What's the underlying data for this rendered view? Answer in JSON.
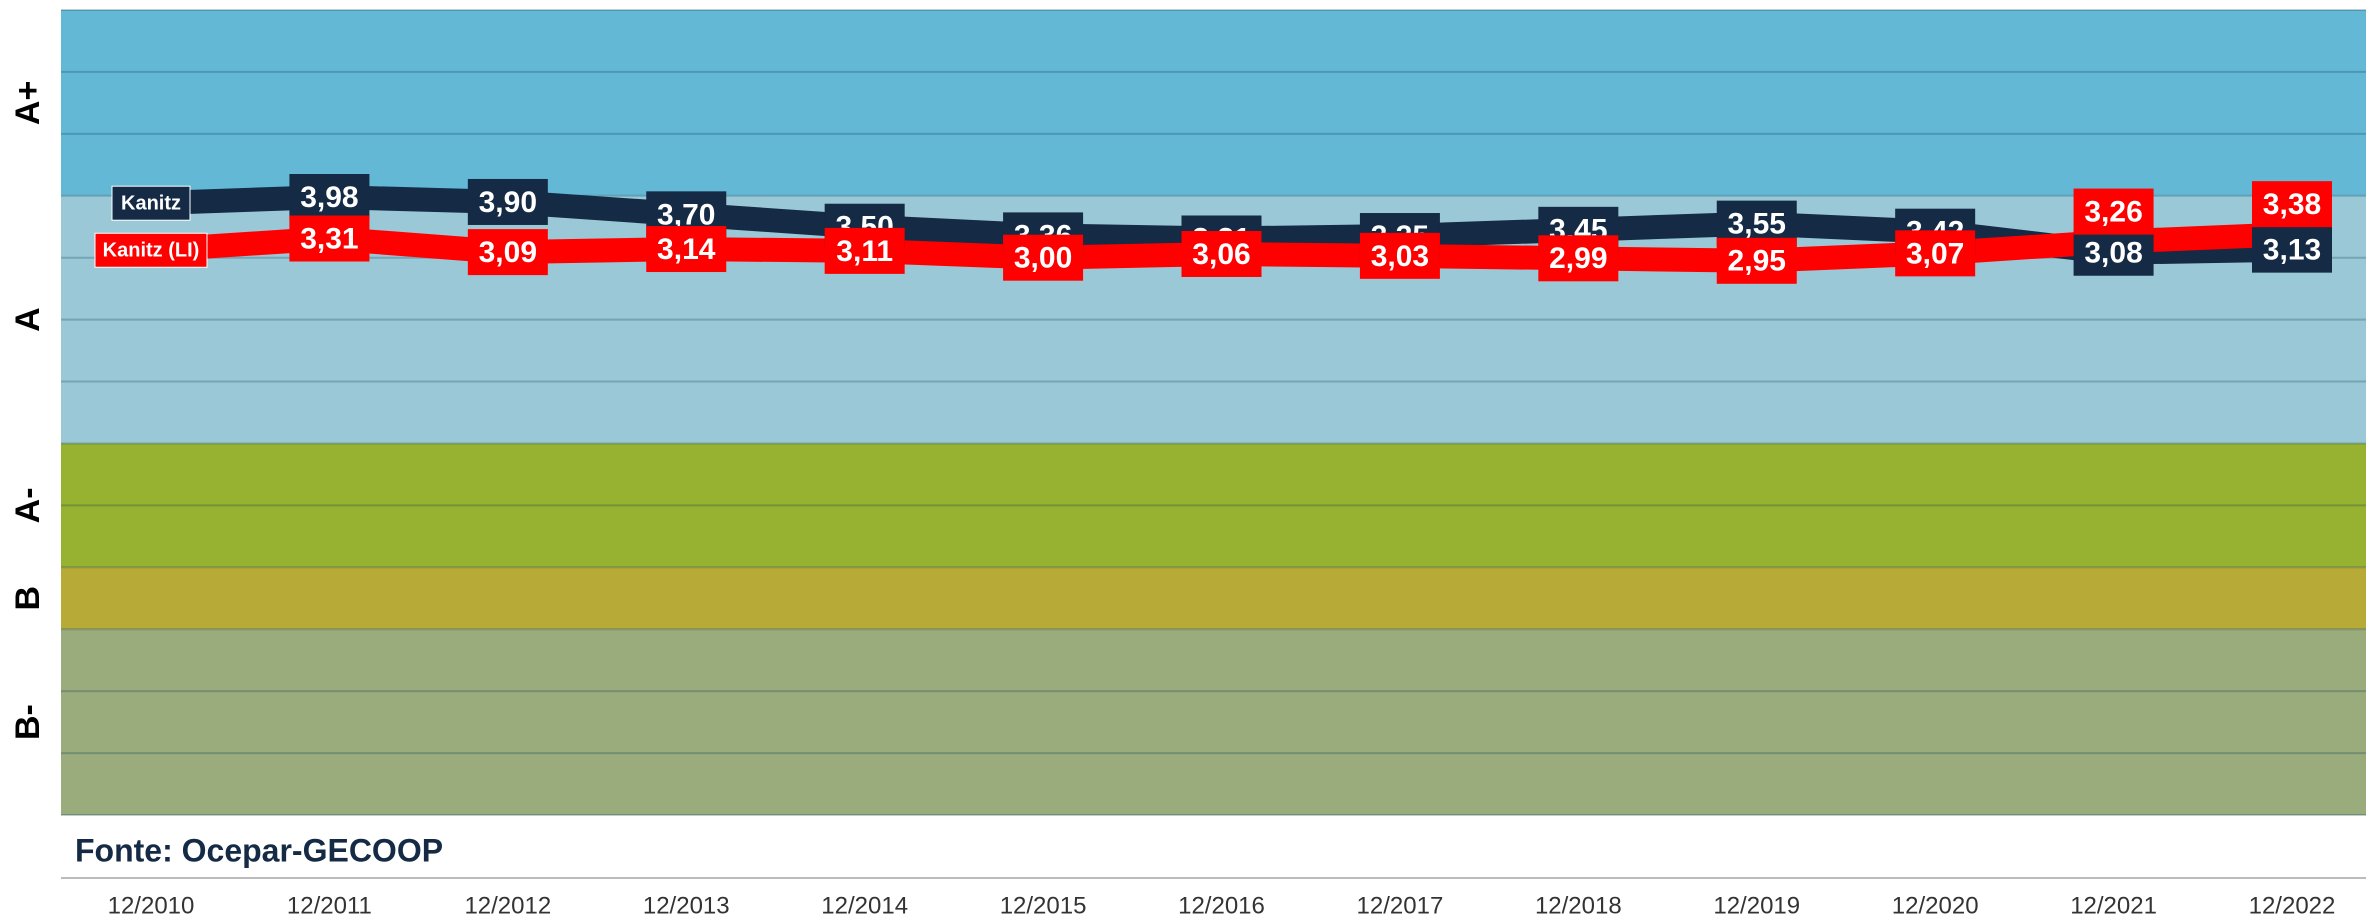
{
  "chart_data": {
    "type": "line",
    "source": "Fonte: Ocepar-GECOOP",
    "categories": [
      "12/2010",
      "12/2011",
      "12/2012",
      "12/2013",
      "12/2014",
      "12/2015",
      "12/2016",
      "12/2017",
      "12/2018",
      "12/2019",
      "12/2020",
      "12/2021",
      "12/2022"
    ],
    "series": [
      {
        "name": "Kanitz",
        "color": "#142a45",
        "values": [
          3.88,
          3.98,
          3.9,
          3.7,
          3.5,
          3.36,
          3.31,
          3.35,
          3.45,
          3.55,
          3.42,
          3.08,
          3.13
        ],
        "value_labels": [
          null,
          "3,98",
          "3,90",
          "3,70",
          "3,50",
          "3,36",
          "3,31",
          "3,35",
          "3,45",
          "3,55",
          "3,42",
          "3,08",
          "3,13"
        ]
      },
      {
        "name": "Kanitz (LI)",
        "color": "#ff0000",
        "values": [
          3.12,
          3.31,
          3.09,
          3.14,
          3.11,
          3.0,
          3.06,
          3.03,
          2.99,
          2.95,
          3.07,
          3.26,
          3.38
        ],
        "value_labels": [
          null,
          "3,31",
          "3,09",
          "3,14",
          "3,11",
          "3,00",
          "3,06",
          "3,03",
          "2,99",
          "2,95",
          "3,07",
          "3,26",
          "3,38"
        ]
      }
    ],
    "bands": [
      {
        "label": "A+",
        "from": 4,
        "to": 7,
        "color": "#63b8d6"
      },
      {
        "label": "A",
        "from": 0,
        "to": 4,
        "color": "#9bc8d6"
      },
      {
        "label": "A-",
        "from": -2,
        "to": 0,
        "color": "#97b231"
      },
      {
        "label": "B",
        "from": -3,
        "to": -2,
        "color": "#b7aa36"
      },
      {
        "label": "B-",
        "from": -6,
        "to": -3,
        "color": "#9aab7c"
      }
    ],
    "ylim": [
      -6,
      7
    ],
    "yticks": [
      -6,
      -5,
      -4,
      -3,
      -2,
      -1,
      0,
      1,
      2,
      3,
      4,
      5,
      6,
      7
    ],
    "grid": true
  }
}
